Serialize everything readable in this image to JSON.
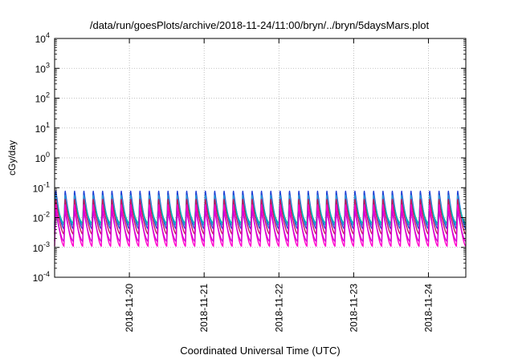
{
  "chart_data": {
    "type": "line",
    "title": "/data/run/goesPlots/archive/2018-11-24/11:00/bryn/../bryn/5daysMars.plot",
    "xlabel": "Coordinated Universal Time (UTC)",
    "ylabel": "cGy/day",
    "yscale": "log",
    "ylim": [
      0.0001,
      10000
    ],
    "xlim": [
      "2018-11-19T00:00",
      "2018-11-24T12:00"
    ],
    "x_ticks": [
      "2018-11-20",
      "2018-11-21",
      "2018-11-22",
      "2018-11-23",
      "2018-11-24"
    ],
    "y_ticks": [
      {
        "base": "10",
        "exp": "-4"
      },
      {
        "base": "10",
        "exp": "-3"
      },
      {
        "base": "10",
        "exp": "-2"
      },
      {
        "base": "10",
        "exp": "-1"
      },
      {
        "base": "10",
        "exp": "0"
      },
      {
        "base": "10",
        "exp": "1"
      },
      {
        "base": "10",
        "exp": "2"
      },
      {
        "base": "10",
        "exp": "3"
      },
      {
        "base": "10",
        "exp": "4"
      }
    ],
    "grid": true,
    "legend": "none",
    "oscillation_period_hours": 3,
    "series": [
      {
        "color": "#1f3fd6",
        "min": 0.0042,
        "max": 0.085
      },
      {
        "color": "#2a9ad4",
        "min": 0.0055,
        "max": 0.06
      },
      {
        "color": "#00b8b0",
        "min": 0.0065,
        "max": 0.04
      },
      {
        "color": "#c2185b",
        "min": 0.0028,
        "max": 0.045
      },
      {
        "color": "#ff00cc",
        "min": 0.0011,
        "max": 0.03
      },
      {
        "color": "#d400d4",
        "min": 0.0016,
        "max": 0.018
      }
    ]
  }
}
